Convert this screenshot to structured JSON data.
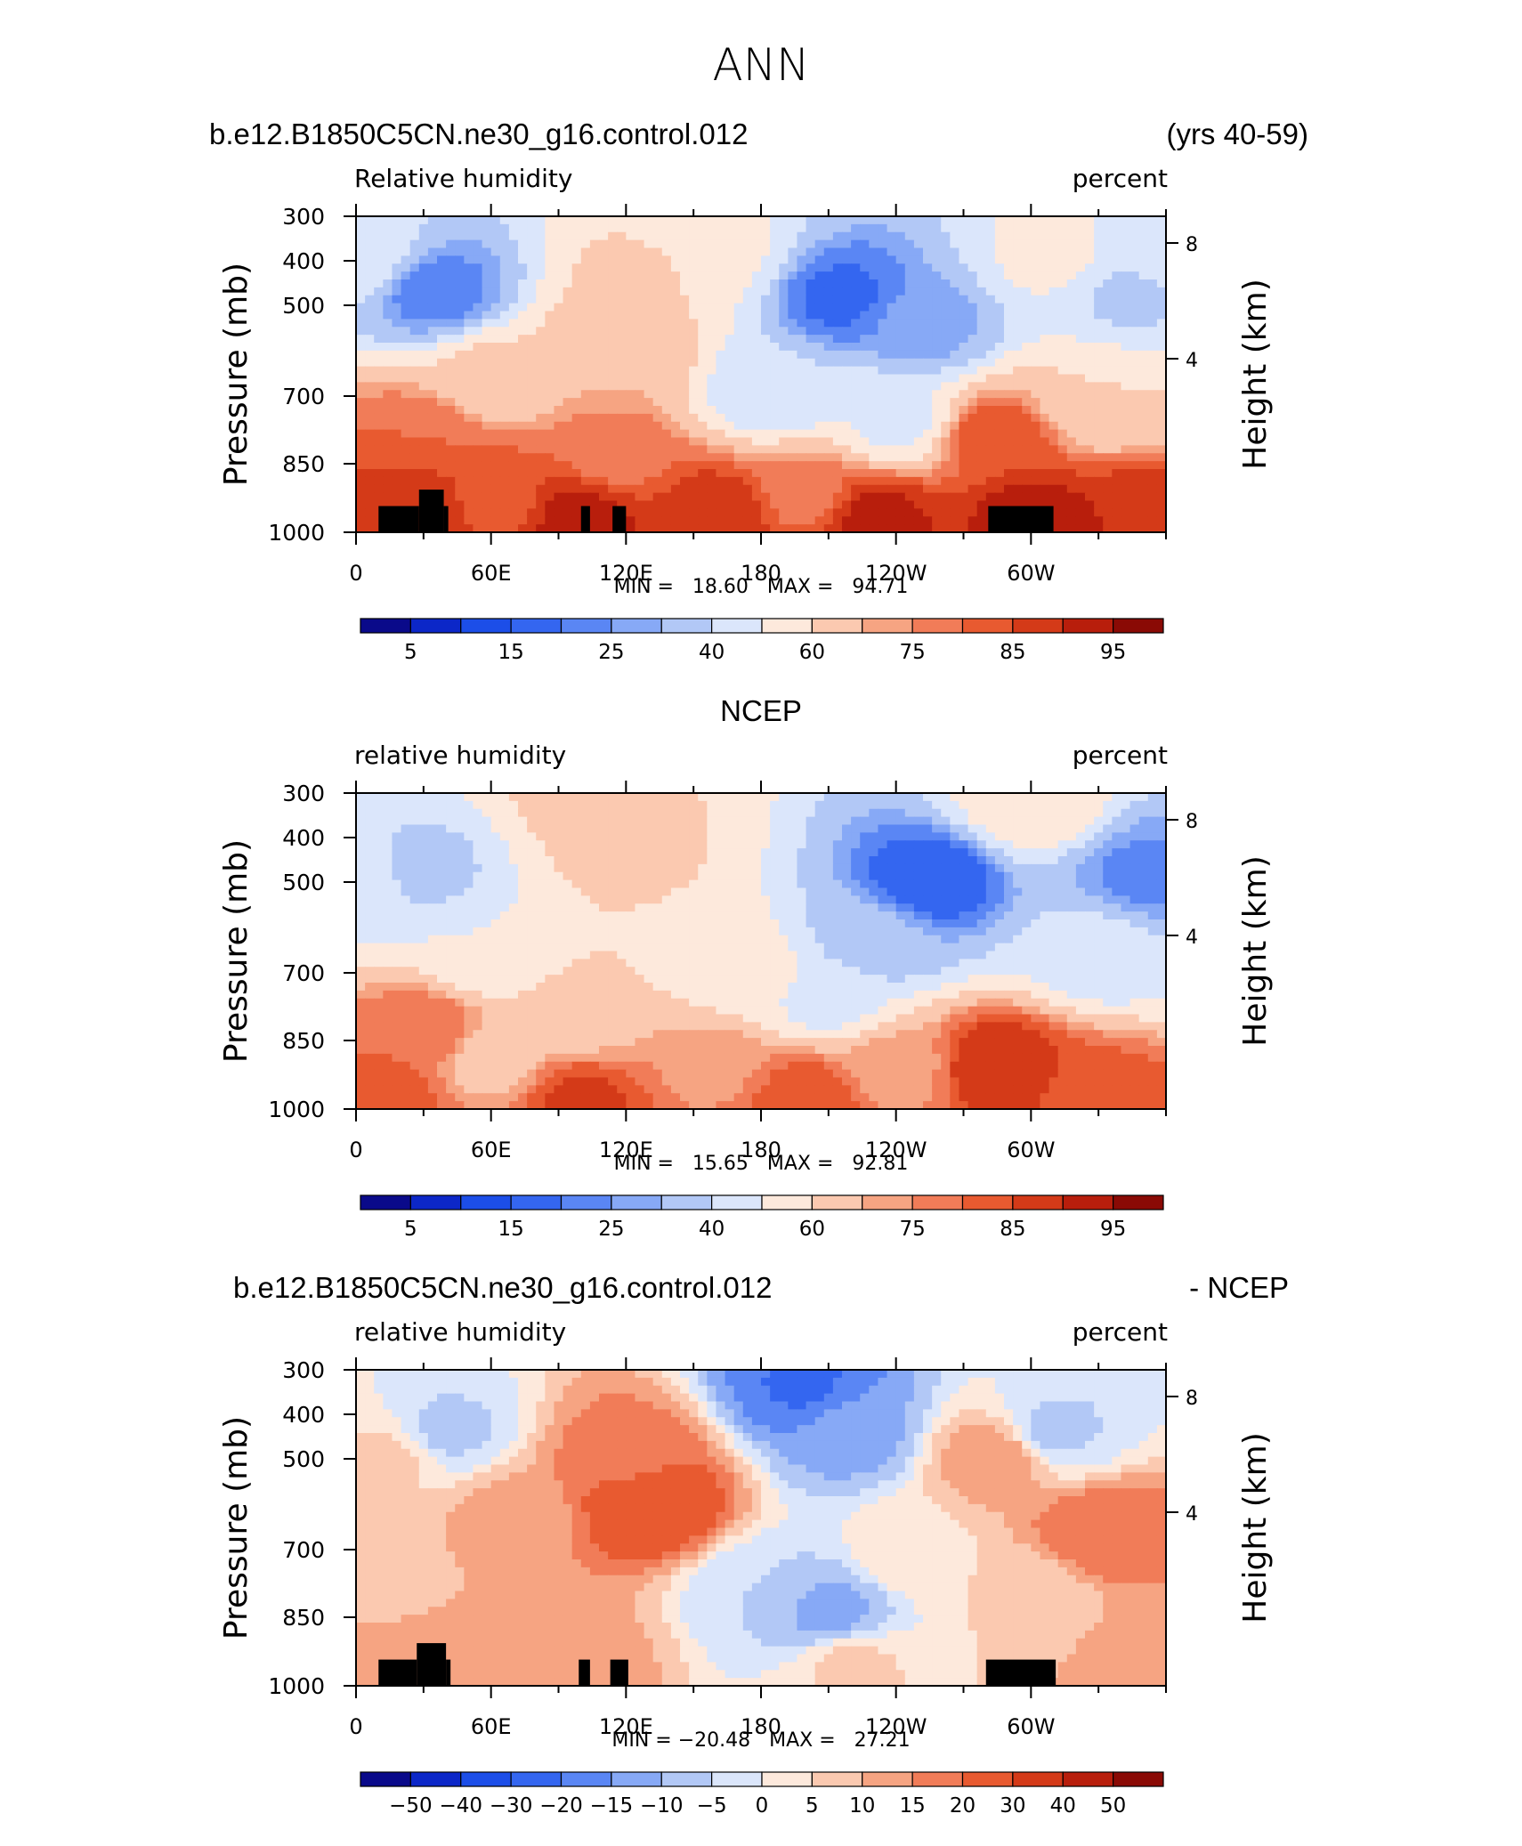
{
  "figure": {
    "title": "ANN",
    "colors": {
      "frame": "#000000",
      "topography": "#000000",
      "text": "#000000"
    }
  },
  "chart_data": [
    {
      "type": "heatmap",
      "name": "model",
      "header_left": "b.e12.B1850C5CN.ne30_g16.control.012",
      "header_right": "(yrs 40-59)",
      "field_label": "Relative humidity",
      "units": "percent",
      "ylabel": "Pressure (mb)",
      "ylabel_right": "Height (km)",
      "y_ticks": [
        "300",
        "400",
        "500",
        "700",
        "850",
        "1000"
      ],
      "y_ticks_right": [
        "8",
        "4"
      ],
      "x_ticks": [
        "0",
        "60E",
        "120E",
        "180",
        "120W",
        "60W"
      ],
      "xlim": [
        0,
        360
      ],
      "ylim": [
        1000,
        300
      ],
      "stats": {
        "min": "18.60",
        "max": "94.71",
        "text": "MIN =   18.60   MAX =   94.71"
      },
      "colorbar_labels": [
        "5",
        "15",
        "25",
        "40",
        "60",
        "75",
        "85",
        "95"
      ],
      "field_points": [
        {
          "lon": 10,
          "p": 950,
          "v": 88
        },
        {
          "lon": 30,
          "p": 900,
          "v": 90
        },
        {
          "lon": 100,
          "p": 940,
          "v": 92
        },
        {
          "lon": 160,
          "p": 940,
          "v": 90
        },
        {
          "lon": 230,
          "p": 950,
          "v": 92
        },
        {
          "lon": 300,
          "p": 940,
          "v": 92
        },
        {
          "lon": 350,
          "p": 950,
          "v": 90
        },
        {
          "lon": 60,
          "p": 870,
          "v": 82
        },
        {
          "lon": 200,
          "p": 870,
          "v": 78
        },
        {
          "lon": 285,
          "p": 700,
          "v": 84
        },
        {
          "lon": 30,
          "p": 700,
          "v": 80
        },
        {
          "lon": 115,
          "p": 750,
          "v": 78
        },
        {
          "lon": 120,
          "p": 500,
          "v": 70
        },
        {
          "lon": 130,
          "p": 380,
          "v": 62
        },
        {
          "lon": 60,
          "p": 550,
          "v": 62
        },
        {
          "lon": 35,
          "p": 400,
          "v": 22
        },
        {
          "lon": 160,
          "p": 350,
          "v": 52
        },
        {
          "lon": 215,
          "p": 410,
          "v": 18.6
        },
        {
          "lon": 250,
          "p": 450,
          "v": 26
        },
        {
          "lon": 185,
          "p": 580,
          "v": 42
        },
        {
          "lon": 240,
          "p": 650,
          "v": 48
        },
        {
          "lon": 345,
          "p": 400,
          "v": 38
        },
        {
          "lon": 330,
          "p": 600,
          "v": 60
        },
        {
          "lon": 0,
          "p": 350,
          "v": 48
        },
        {
          "lon": 360,
          "p": 350,
          "v": 48
        },
        {
          "lon": 310,
          "p": 350,
          "v": 52
        }
      ],
      "topography": [
        {
          "lon0": 10,
          "lon1": 28,
          "p_top": 905
        },
        {
          "lon0": 28,
          "lon1": 39,
          "p_top": 850
        },
        {
          "lon0": 39,
          "lon1": 41,
          "p_top": 905
        },
        {
          "lon0": 100,
          "lon1": 104,
          "p_top": 905
        },
        {
          "lon0": 114,
          "lon1": 120,
          "p_top": 905
        },
        {
          "lon0": 281,
          "lon1": 310,
          "p_top": 905
        }
      ]
    },
    {
      "type": "heatmap",
      "name": "obs",
      "header_center": "NCEP",
      "field_label": "relative humidity",
      "units": "percent",
      "ylabel": "Pressure (mb)",
      "ylabel_right": "Height (km)",
      "y_ticks": [
        "300",
        "400",
        "500",
        "700",
        "850",
        "1000"
      ],
      "y_ticks_right": [
        "8",
        "4"
      ],
      "x_ticks": [
        "0",
        "60E",
        "120E",
        "180",
        "120W",
        "60W"
      ],
      "xlim": [
        0,
        360
      ],
      "ylim": [
        1000,
        300
      ],
      "stats": {
        "min": "15.65",
        "max": "92.81",
        "text": "MIN =   15.65   MAX =   92.81"
      },
      "colorbar_labels": [
        "5",
        "15",
        "25",
        "40",
        "60",
        "75",
        "85",
        "95"
      ],
      "field_points": [
        {
          "lon": 15,
          "p": 960,
          "v": 82
        },
        {
          "lon": 100,
          "p": 960,
          "v": 86
        },
        {
          "lon": 200,
          "p": 950,
          "v": 84
        },
        {
          "lon": 285,
          "p": 850,
          "v": 90
        },
        {
          "lon": 330,
          "p": 950,
          "v": 82
        },
        {
          "lon": 32,
          "p": 750,
          "v": 80
        },
        {
          "lon": 60,
          "p": 820,
          "v": 66
        },
        {
          "lon": 100,
          "p": 720,
          "v": 68
        },
        {
          "lon": 160,
          "p": 850,
          "v": 74
        },
        {
          "lon": 240,
          "p": 850,
          "v": 72
        },
        {
          "lon": 30,
          "p": 400,
          "v": 38
        },
        {
          "lon": 60,
          "p": 550,
          "v": 50
        },
        {
          "lon": 120,
          "p": 380,
          "v": 62
        },
        {
          "lon": 150,
          "p": 550,
          "v": 58
        },
        {
          "lon": 180,
          "p": 600,
          "v": 52
        },
        {
          "lon": 255,
          "p": 420,
          "v": 15.65
        },
        {
          "lon": 230,
          "p": 520,
          "v": 32
        },
        {
          "lon": 210,
          "p": 650,
          "v": 46
        },
        {
          "lon": 350,
          "p": 410,
          "v": 24
        },
        {
          "lon": 330,
          "p": 550,
          "v": 45
        },
        {
          "lon": 0,
          "p": 420,
          "v": 45
        },
        {
          "lon": 100,
          "p": 310,
          "v": 62
        },
        {
          "lon": 300,
          "p": 310,
          "v": 58
        }
      ],
      "topography": []
    },
    {
      "type": "heatmap",
      "name": "difference",
      "header_left": "b.e12.B1850C5CN.ne30_g16.control.012",
      "header_right": "- NCEP",
      "field_label": "relative humidity",
      "units": "percent",
      "ylabel": "Pressure (mb)",
      "ylabel_right": "Height (km)",
      "y_ticks": [
        "300",
        "400",
        "500",
        "700",
        "850",
        "1000"
      ],
      "y_ticks_right": [
        "8",
        "4"
      ],
      "x_ticks": [
        "0",
        "60E",
        "120E",
        "180",
        "120W",
        "60W"
      ],
      "xlim": [
        0,
        360
      ],
      "ylim": [
        1000,
        300
      ],
      "stats": {
        "min": "-20.48",
        "max": "27.21",
        "text": "MIN = −20.48   MAX =   27.21"
      },
      "colorbar_labels": [
        "−50",
        "−40",
        "−30",
        "−20",
        "−15",
        "−10",
        "−5",
        "0",
        "5",
        "10",
        "15",
        "20",
        "30",
        "40",
        "50"
      ],
      "field_points": [
        {
          "lon": 130,
          "p": 500,
          "v": 27.21
        },
        {
          "lon": 120,
          "p": 420,
          "v": 18
        },
        {
          "lon": 70,
          "p": 520,
          "v": 12
        },
        {
          "lon": 330,
          "p": 560,
          "v": 20
        },
        {
          "lon": 285,
          "p": 420,
          "v": 14
        },
        {
          "lon": 200,
          "p": 320,
          "v": -20.48
        },
        {
          "lon": 220,
          "p": 380,
          "v": -12
        },
        {
          "lon": 210,
          "p": 760,
          "v": -12
        },
        {
          "lon": 180,
          "p": 700,
          "v": -5
        },
        {
          "lon": 40,
          "p": 380,
          "v": -6
        },
        {
          "lon": 310,
          "p": 380,
          "v": -6
        },
        {
          "lon": 100,
          "p": 900,
          "v": 12
        },
        {
          "lon": 20,
          "p": 900,
          "v": 15
        },
        {
          "lon": 350,
          "p": 930,
          "v": 12
        },
        {
          "lon": 220,
          "p": 920,
          "v": 6
        },
        {
          "lon": 10,
          "p": 700,
          "v": 8
        },
        {
          "lon": 300,
          "p": 700,
          "v": 6
        },
        {
          "lon": 250,
          "p": 600,
          "v": 4
        },
        {
          "lon": 15,
          "p": 420,
          "v": 6
        }
      ],
      "topography": [
        {
          "lon0": 10,
          "lon1": 27,
          "p_top": 905
        },
        {
          "lon0": 27,
          "lon1": 40,
          "p_top": 850
        },
        {
          "lon0": 40,
          "lon1": 42,
          "p_top": 905
        },
        {
          "lon0": 99,
          "lon1": 104,
          "p_top": 905
        },
        {
          "lon0": 113,
          "lon1": 121,
          "p_top": 905
        },
        {
          "lon0": 280,
          "lon1": 311,
          "p_top": 905
        }
      ]
    }
  ],
  "palettes": {
    "rh": [
      "#0a0a8a",
      "#0c27c8",
      "#1c4ee8",
      "#3466f0",
      "#5a86f4",
      "#87a9f6",
      "#b2c8f6",
      "#dbe6fb",
      "#fde9dc",
      "#fbc9b0",
      "#f6a482",
      "#f17c58",
      "#e85a30",
      "#d43a18",
      "#b81e0c",
      "#8a0a05"
    ],
    "diff": [
      "#0a0a8a",
      "#0c27c8",
      "#1c4ee8",
      "#3466f0",
      "#5a86f4",
      "#87a9f6",
      "#b2c8f6",
      "#dbe6fb",
      "#fde9dc",
      "#fbc9b0",
      "#f6a482",
      "#f17c58",
      "#e85a30",
      "#d43a18",
      "#b81e0c",
      "#8a0a05"
    ]
  },
  "levels": {
    "rh": [
      5,
      10,
      15,
      20,
      25,
      30,
      40,
      50,
      60,
      70,
      75,
      80,
      85,
      90,
      95
    ],
    "diff": [
      -50,
      -40,
      -30,
      -20,
      -15,
      -10,
      -5,
      0,
      5,
      10,
      15,
      20,
      30,
      40,
      50
    ]
  }
}
